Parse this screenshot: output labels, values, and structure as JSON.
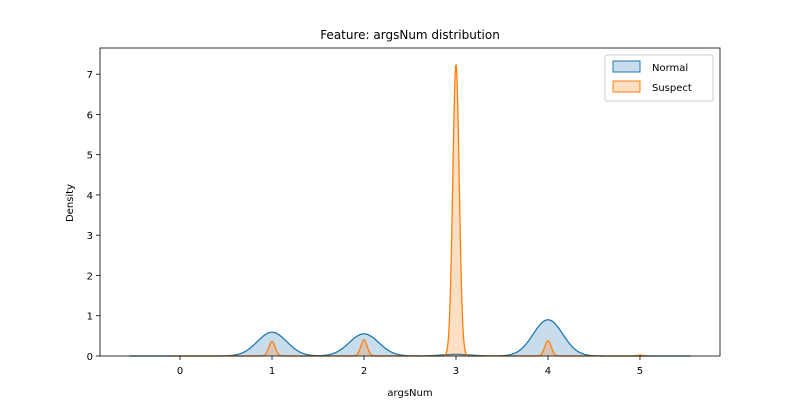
{
  "chart_data": {
    "type": "area",
    "title": "Feature: argsNum distribution",
    "xlabel": "argsNum",
    "ylabel": "Density",
    "xlim": [
      -0.87,
      5.87
    ],
    "ylim": [
      0,
      7.65
    ],
    "xticks": [
      0,
      1,
      2,
      3,
      4,
      5
    ],
    "yticks": [
      0,
      1,
      2,
      3,
      4,
      5,
      6,
      7
    ],
    "grid": false,
    "legend_position": "top-right",
    "series": [
      {
        "name": "Normal",
        "color": "#1f77b4",
        "fill_opacity": 0.25,
        "x_range": [
          -0.55,
          5.55
        ],
        "peaks": [
          {
            "x": 1,
            "height": 0.59,
            "sigma": 0.16
          },
          {
            "x": 2,
            "height": 0.55,
            "sigma": 0.16
          },
          {
            "x": 3,
            "height": 0.04,
            "sigma": 0.16
          },
          {
            "x": 4,
            "height": 0.9,
            "sigma": 0.16
          }
        ]
      },
      {
        "name": "Suspect",
        "color": "#ff7f0e",
        "fill_opacity": 0.25,
        "x_range": [
          -0.1,
          5.1
        ],
        "peaks": [
          {
            "x": 1,
            "height": 0.36,
            "sigma": 0.035
          },
          {
            "x": 2,
            "height": 0.4,
            "sigma": 0.035
          },
          {
            "x": 3,
            "height": 7.25,
            "sigma": 0.035
          },
          {
            "x": 4,
            "height": 0.38,
            "sigma": 0.035
          },
          {
            "x": 5,
            "height": 0.02,
            "sigma": 0.035
          }
        ]
      }
    ]
  }
}
